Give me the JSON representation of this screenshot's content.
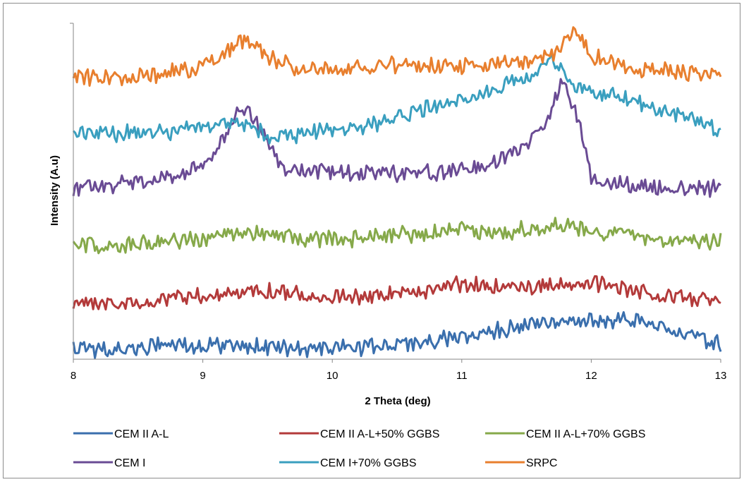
{
  "chart_data": {
    "type": "line",
    "title": "",
    "xlabel": "2 Theta (deg)",
    "ylabel": "Intensity (A.u)",
    "xlim": [
      8,
      13
    ],
    "x_ticks": [
      "8",
      "9",
      "10",
      "11",
      "12",
      "13"
    ],
    "y_ticks_labeled": false,
    "grid": false,
    "legend_position": "bottom",
    "series": [
      {
        "name": "CEM II A-L",
        "color": "#3a6fad",
        "points": [
          [
            8.0,
            493
          ],
          [
            8.25,
            495
          ],
          [
            8.5,
            493
          ],
          [
            8.75,
            488
          ],
          [
            9.0,
            490
          ],
          [
            9.25,
            487
          ],
          [
            9.5,
            492
          ],
          [
            9.75,
            494
          ],
          [
            10.0,
            493
          ],
          [
            10.25,
            492
          ],
          [
            10.5,
            488
          ],
          [
            10.75,
            484
          ],
          [
            11.0,
            478
          ],
          [
            11.25,
            468
          ],
          [
            11.5,
            460
          ],
          [
            11.75,
            455
          ],
          [
            12.0,
            455
          ],
          [
            12.25,
            453
          ],
          [
            12.5,
            460
          ],
          [
            12.75,
            475
          ],
          [
            13.0,
            488
          ]
        ]
      },
      {
        "name": "CEM II A-L+50% GGBS",
        "color": "#b33a3a",
        "points": [
          [
            8.0,
            427
          ],
          [
            8.25,
            430
          ],
          [
            8.5,
            427
          ],
          [
            8.75,
            422
          ],
          [
            9.0,
            420
          ],
          [
            9.25,
            413
          ],
          [
            9.5,
            412
          ],
          [
            9.75,
            418
          ],
          [
            10.0,
            420
          ],
          [
            10.25,
            420
          ],
          [
            10.5,
            418
          ],
          [
            10.75,
            410
          ],
          [
            11.0,
            402
          ],
          [
            11.25,
            407
          ],
          [
            11.5,
            408
          ],
          [
            11.75,
            400
          ],
          [
            12.0,
            402
          ],
          [
            12.25,
            410
          ],
          [
            12.5,
            418
          ],
          [
            12.75,
            422
          ],
          [
            13.0,
            425
          ]
        ]
      },
      {
        "name": "CEM II A-L+70% GGBS",
        "color": "#86a94a",
        "points": [
          [
            8.0,
            345
          ],
          [
            8.25,
            348
          ],
          [
            8.5,
            345
          ],
          [
            8.75,
            340
          ],
          [
            9.0,
            340
          ],
          [
            9.25,
            330
          ],
          [
            9.5,
            332
          ],
          [
            9.75,
            337
          ],
          [
            10.0,
            340
          ],
          [
            10.25,
            338
          ],
          [
            10.5,
            333
          ],
          [
            10.75,
            330
          ],
          [
            11.0,
            327
          ],
          [
            11.25,
            330
          ],
          [
            11.5,
            325
          ],
          [
            11.75,
            320
          ],
          [
            12.0,
            328
          ],
          [
            12.25,
            332
          ],
          [
            12.5,
            338
          ],
          [
            12.75,
            342
          ],
          [
            13.0,
            342
          ]
        ]
      },
      {
        "name": "CEM I",
        "color": "#6a4b94",
        "points": [
          [
            8.0,
            268
          ],
          [
            8.25,
            265
          ],
          [
            8.5,
            258
          ],
          [
            8.75,
            252
          ],
          [
            9.0,
            232
          ],
          [
            9.15,
            200
          ],
          [
            9.3,
            148
          ],
          [
            9.45,
            180
          ],
          [
            9.6,
            238
          ],
          [
            9.75,
            242
          ],
          [
            10.0,
            243
          ],
          [
            10.25,
            245
          ],
          [
            10.5,
            247
          ],
          [
            10.75,
            245
          ],
          [
            11.0,
            242
          ],
          [
            11.25,
            230
          ],
          [
            11.5,
            205
          ],
          [
            11.65,
            170
          ],
          [
            11.78,
            110
          ],
          [
            11.9,
            170
          ],
          [
            12.0,
            252
          ],
          [
            12.25,
            262
          ],
          [
            12.5,
            265
          ],
          [
            12.75,
            266
          ],
          [
            13.0,
            268
          ]
        ]
      },
      {
        "name": "CEM I+70% GGBS",
        "color": "#3a9fbf",
        "points": [
          [
            8.0,
            188
          ],
          [
            8.25,
            190
          ],
          [
            8.5,
            188
          ],
          [
            8.75,
            186
          ],
          [
            9.0,
            180
          ],
          [
            9.25,
            172
          ],
          [
            9.5,
            192
          ],
          [
            9.75,
            190
          ],
          [
            10.0,
            185
          ],
          [
            10.25,
            178
          ],
          [
            10.5,
            168
          ],
          [
            10.75,
            152
          ],
          [
            11.0,
            142
          ],
          [
            11.25,
            127
          ],
          [
            11.5,
            108
          ],
          [
            11.7,
            85
          ],
          [
            11.85,
            118
          ],
          [
            12.0,
            130
          ],
          [
            12.25,
            140
          ],
          [
            12.5,
            152
          ],
          [
            12.75,
            165
          ],
          [
            13.0,
            188
          ]
        ]
      },
      {
        "name": "SRPC",
        "color": "#e87f2e",
        "points": [
          [
            8.0,
            108
          ],
          [
            8.25,
            110
          ],
          [
            8.5,
            108
          ],
          [
            8.75,
            102
          ],
          [
            9.0,
            96
          ],
          [
            9.2,
            70
          ],
          [
            9.35,
            55
          ],
          [
            9.5,
            80
          ],
          [
            9.75,
            100
          ],
          [
            10.0,
            98
          ],
          [
            10.25,
            94
          ],
          [
            10.5,
            92
          ],
          [
            10.75,
            94
          ],
          [
            11.0,
            95
          ],
          [
            11.25,
            92
          ],
          [
            11.5,
            86
          ],
          [
            11.75,
            75
          ],
          [
            11.88,
            40
          ],
          [
            12.0,
            78
          ],
          [
            12.25,
            96
          ],
          [
            12.5,
            100
          ],
          [
            12.75,
            102
          ],
          [
            13.0,
            108
          ]
        ]
      }
    ]
  }
}
